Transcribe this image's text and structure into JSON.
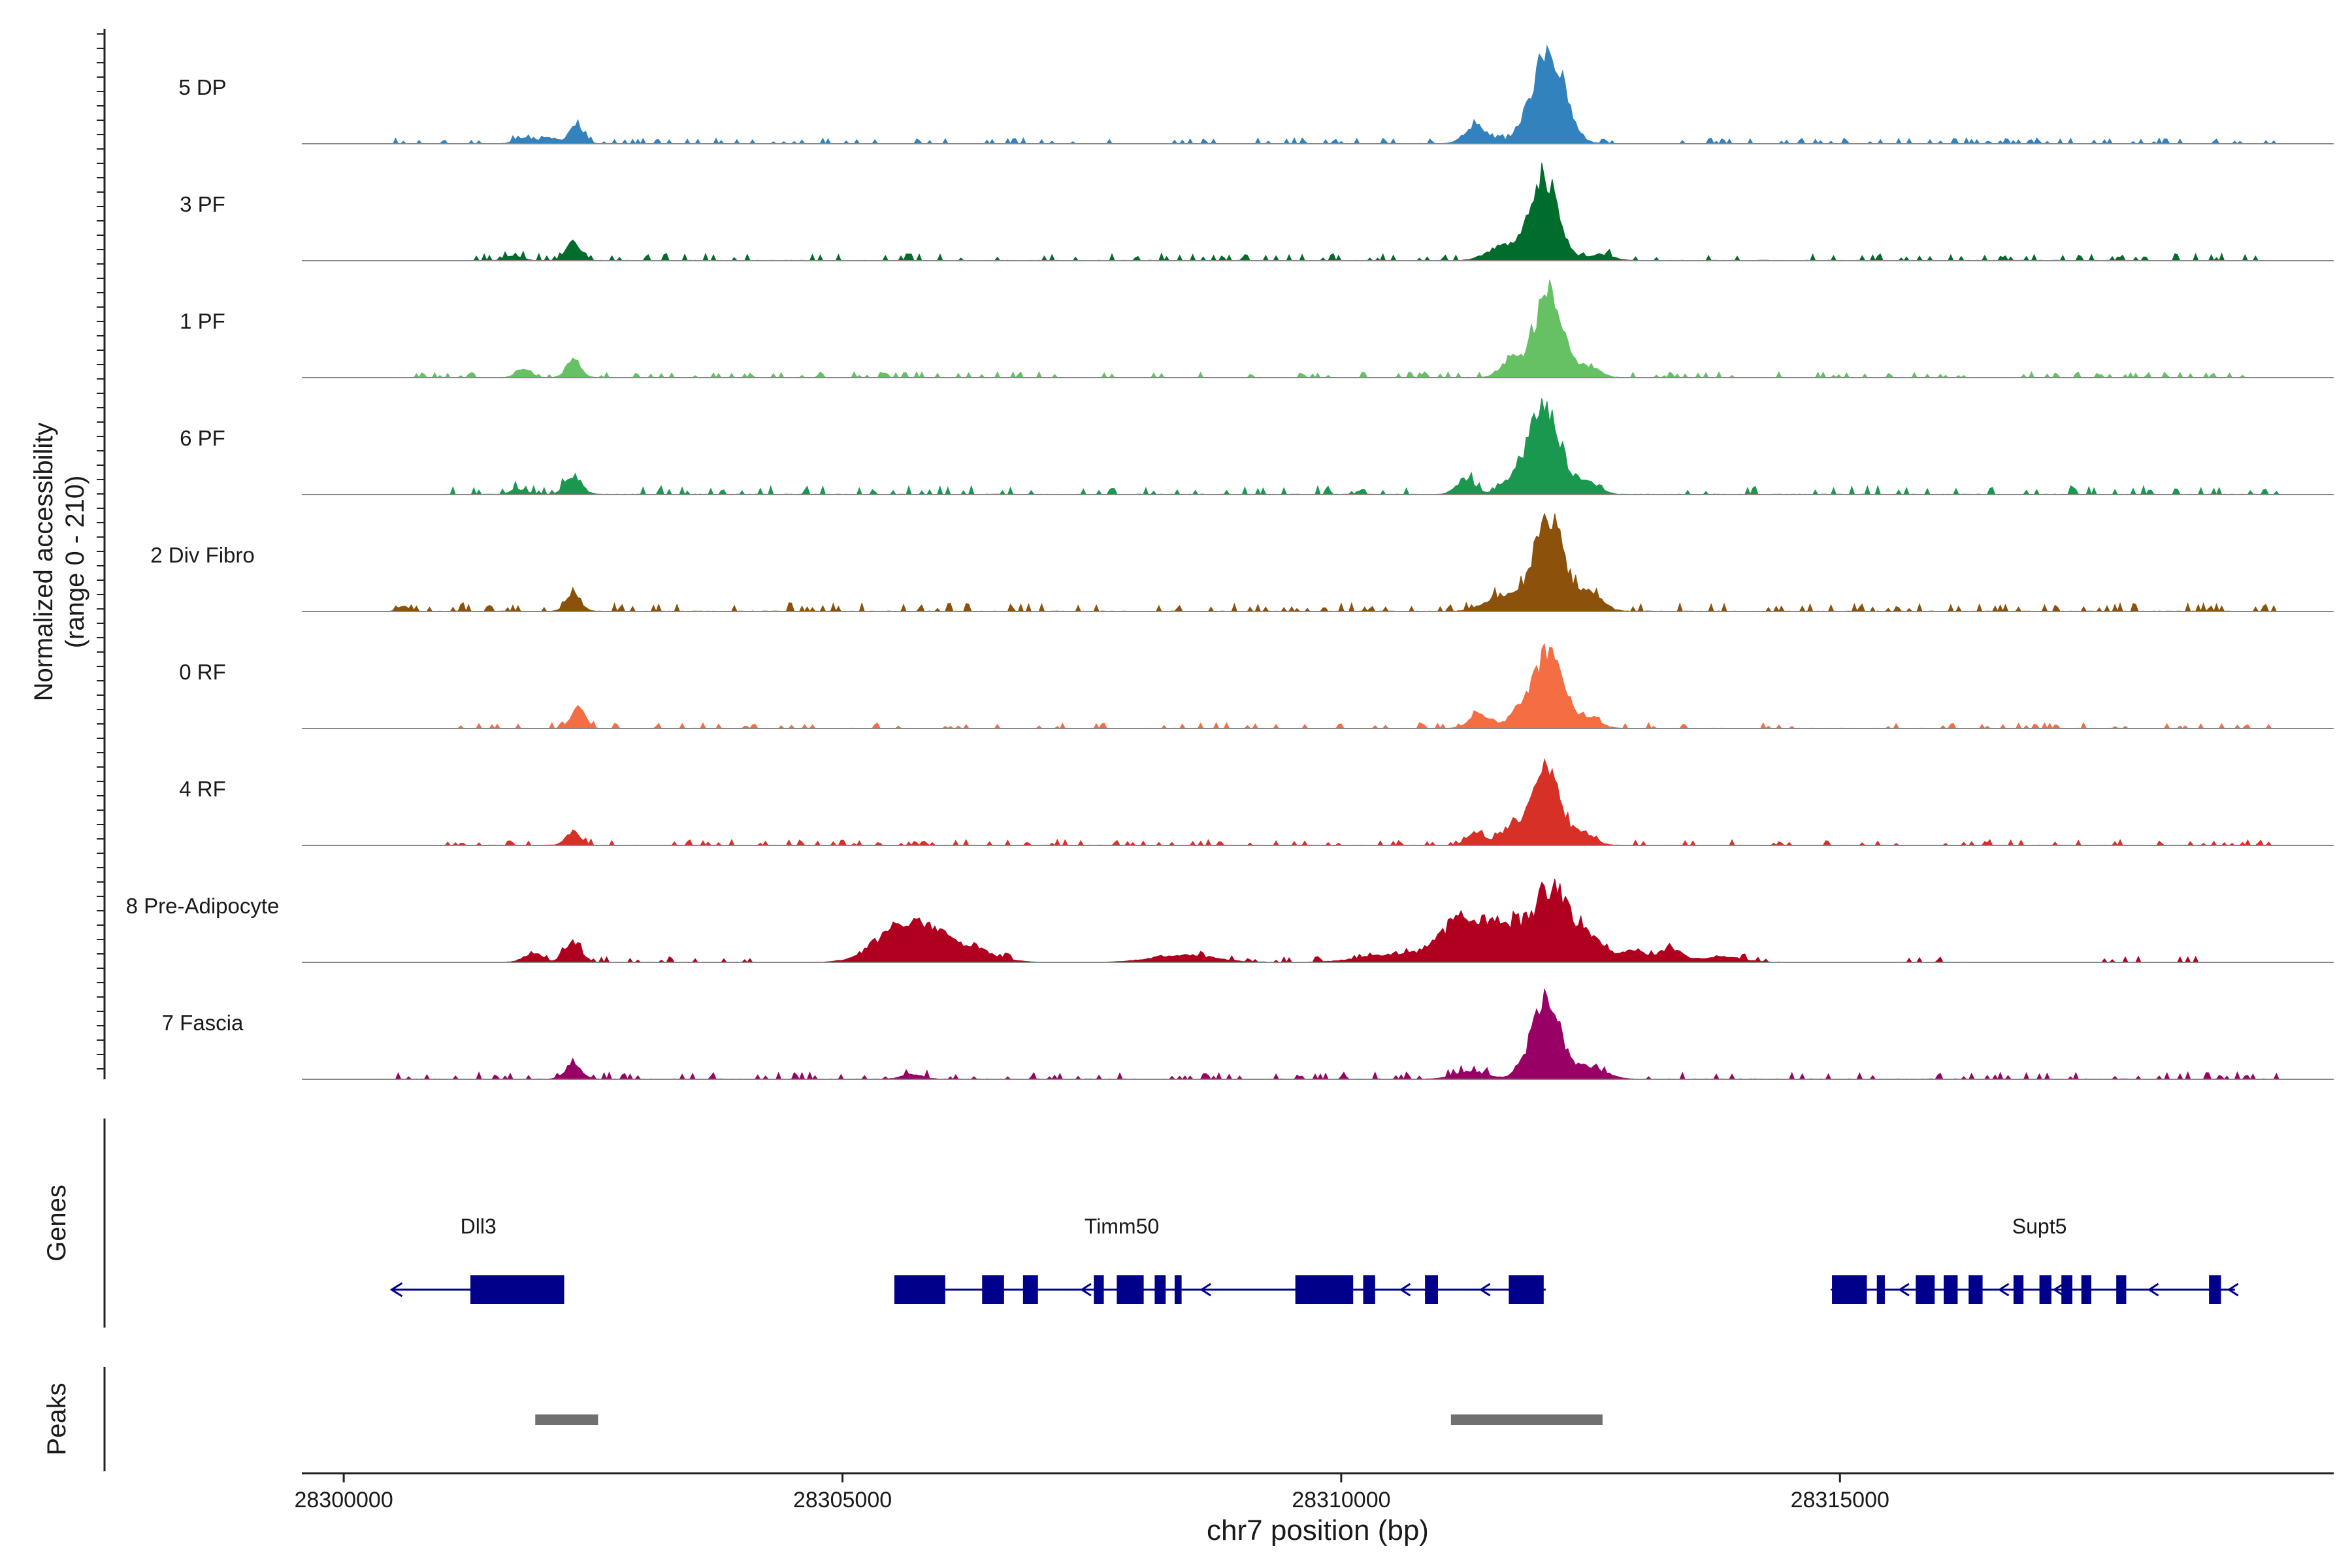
{
  "chart_data": {
    "type": "area",
    "title": "",
    "xlabel": "chr7 position (bp)",
    "ylabel_line1": "Normalized accessibility",
    "ylabel_line2": "(range 0 - 210)",
    "y_range": [
      0,
      210
    ],
    "x_range": [
      28299580,
      28319950
    ],
    "x_ticks": [
      28300000,
      28305000,
      28310000,
      28315000
    ],
    "x_tick_labels": [
      "28300000",
      "28305000",
      "28310000",
      "28315000"
    ],
    "panel_labels": {
      "genes": "Genes",
      "peaks": "Peaks"
    },
    "tracks": [
      {
        "name": "5 DP",
        "color": "#3182bd",
        "peaks": [
          [
            28302330,
            0.22,
            70
          ],
          [
            28312090,
            0.95,
            150
          ],
          [
            28311350,
            0.2,
            110
          ],
          [
            28311850,
            0.12,
            120
          ],
          [
            28301800,
            0.06,
            80
          ],
          [
            28302050,
            0.06,
            80
          ]
        ],
        "noise": 0.04,
        "noise_ranges": [
          [
            28300500,
            28319400
          ]
        ]
      },
      {
        "name": "3 PF",
        "color": "#006d2c",
        "peaks": [
          [
            28302300,
            0.22,
            70
          ],
          [
            28312030,
            0.9,
            140
          ],
          [
            28311600,
            0.14,
            140
          ],
          [
            28312600,
            0.06,
            120
          ],
          [
            28301700,
            0.05,
            80
          ]
        ],
        "noise": 0.05,
        "noise_ranges": [
          [
            28301200,
            28319400
          ]
        ]
      },
      {
        "name": "1 PF",
        "color": "#66c164",
        "peaks": [
          [
            28302300,
            0.18,
            70
          ],
          [
            28312080,
            0.88,
            140
          ],
          [
            28301800,
            0.09,
            70
          ],
          [
            28311700,
            0.18,
            100
          ],
          [
            28312500,
            0.1,
            100
          ]
        ],
        "noise": 0.04,
        "noise_ranges": [
          [
            28300700,
            28319400
          ]
        ]
      },
      {
        "name": "6 PF",
        "color": "#1a9850",
        "peaks": [
          [
            28302300,
            0.2,
            80
          ],
          [
            28312030,
            0.93,
            150
          ],
          [
            28311250,
            0.16,
            90
          ],
          [
            28311700,
            0.12,
            110
          ],
          [
            28312450,
            0.14,
            120
          ],
          [
            28301750,
            0.05,
            80
          ]
        ],
        "noise": 0.06,
        "noise_ranges": [
          [
            28301000,
            28319400
          ]
        ]
      },
      {
        "name": "2 Div Fibro",
        "color": "#8c510a",
        "peaks": [
          [
            28302300,
            0.18,
            70
          ],
          [
            28312080,
            1.0,
            150
          ],
          [
            28311600,
            0.16,
            160
          ],
          [
            28312500,
            0.18,
            120
          ],
          [
            28300600,
            0.05,
            60
          ]
        ],
        "noise": 0.06,
        "noise_ranges": [
          [
            28300500,
            28319400
          ]
        ]
      },
      {
        "name": "0 RF",
        "color": "#f46d43",
        "peaks": [
          [
            28302350,
            0.2,
            70
          ],
          [
            28312090,
            0.82,
            140
          ],
          [
            28311400,
            0.14,
            110
          ],
          [
            28311800,
            0.18,
            110
          ],
          [
            28312500,
            0.12,
            100
          ]
        ],
        "noise": 0.04,
        "noise_ranges": [
          [
            28301000,
            28319400
          ]
        ]
      },
      {
        "name": "4 RF",
        "color": "#d73027",
        "peaks": [
          [
            28302300,
            0.14,
            70
          ],
          [
            28312050,
            0.85,
            140
          ],
          [
            28311350,
            0.14,
            90
          ],
          [
            28311700,
            0.18,
            110
          ],
          [
            28312450,
            0.12,
            100
          ]
        ],
        "noise": 0.04,
        "noise_ranges": [
          [
            28301000,
            28319400
          ]
        ]
      },
      {
        "name": "8 Pre-Adipocyte",
        "color": "#b0001f",
        "peaks": [
          [
            28302300,
            0.22,
            80
          ],
          [
            28305550,
            0.3,
            250
          ],
          [
            28305900,
            0.22,
            250
          ],
          [
            28306300,
            0.1,
            250
          ],
          [
            28311200,
            0.42,
            220
          ],
          [
            28311700,
            0.38,
            220
          ],
          [
            28312100,
            0.62,
            150
          ],
          [
            28312400,
            0.3,
            200
          ],
          [
            28312950,
            0.12,
            110
          ],
          [
            28313300,
            0.14,
            110
          ],
          [
            28301900,
            0.1,
            90
          ],
          [
            28308400,
            0.08,
            300
          ],
          [
            28310500,
            0.08,
            300
          ],
          [
            28313800,
            0.06,
            200
          ]
        ],
        "noise": 0.04,
        "noise_ranges": [
          [
            28301300,
            28304200
          ],
          [
            28305200,
            28306700
          ],
          [
            28308400,
            28314500
          ],
          [
            28315500,
            28316400
          ],
          [
            28317600,
            28318000
          ],
          [
            28318400,
            28318600
          ]
        ]
      },
      {
        "name": "7 Fascia",
        "color": "#990066",
        "peaks": [
          [
            28302300,
            0.16,
            80
          ],
          [
            28312050,
            0.75,
            150
          ],
          [
            28311300,
            0.08,
            160
          ],
          [
            28312500,
            0.12,
            150
          ],
          [
            28305700,
            0.05,
            100
          ]
        ],
        "noise": 0.05,
        "noise_ranges": [
          [
            28300500,
            28319400
          ]
        ]
      }
    ],
    "genes": [
      {
        "name": "Dll3",
        "label_x": 28301350,
        "strand": "-",
        "line": [
          28300480,
          28302200
        ],
        "exons": [
          [
            28301270,
            28302210
          ]
        ],
        "arrows": []
      },
      {
        "name": "Timm50",
        "label_x": 28307800,
        "strand": "-",
        "line": [
          28305550,
          28312050
        ],
        "exons": [
          [
            28305520,
            28306030
          ],
          [
            28306400,
            28306620
          ],
          [
            28306810,
            28306960
          ],
          [
            28307520,
            28307620
          ],
          [
            28307750,
            28308020
          ],
          [
            28308130,
            28308240
          ],
          [
            28308330,
            28308400
          ],
          [
            28309540,
            28310120
          ],
          [
            28310220,
            28310340
          ],
          [
            28310840,
            28310970
          ],
          [
            28311680,
            28312030
          ]
        ],
        "arrows": [
          28308600,
          28310600,
          28311400,
          28307400
        ]
      },
      {
        "name": "Supt5",
        "label_x": 28317000,
        "strand": "-",
        "line": [
          28314920,
          28318960
        ],
        "exons": [
          [
            28314920,
            28315270
          ],
          [
            28315370,
            28315450
          ],
          [
            28315760,
            28315950
          ],
          [
            28316040,
            28316180
          ],
          [
            28316290,
            28316430
          ],
          [
            28316740,
            28316840
          ],
          [
            28317000,
            28317120
          ],
          [
            28317220,
            28317330
          ],
          [
            28317420,
            28317520
          ],
          [
            28317770,
            28317870
          ],
          [
            28318700,
            28318820
          ]
        ],
        "arrows": [
          28315600,
          28316600,
          28317150,
          28318100,
          28318900
        ]
      }
    ],
    "peak_regions": [
      [
        28301920,
        28302550
      ],
      [
        28311100,
        28312620
      ]
    ]
  }
}
